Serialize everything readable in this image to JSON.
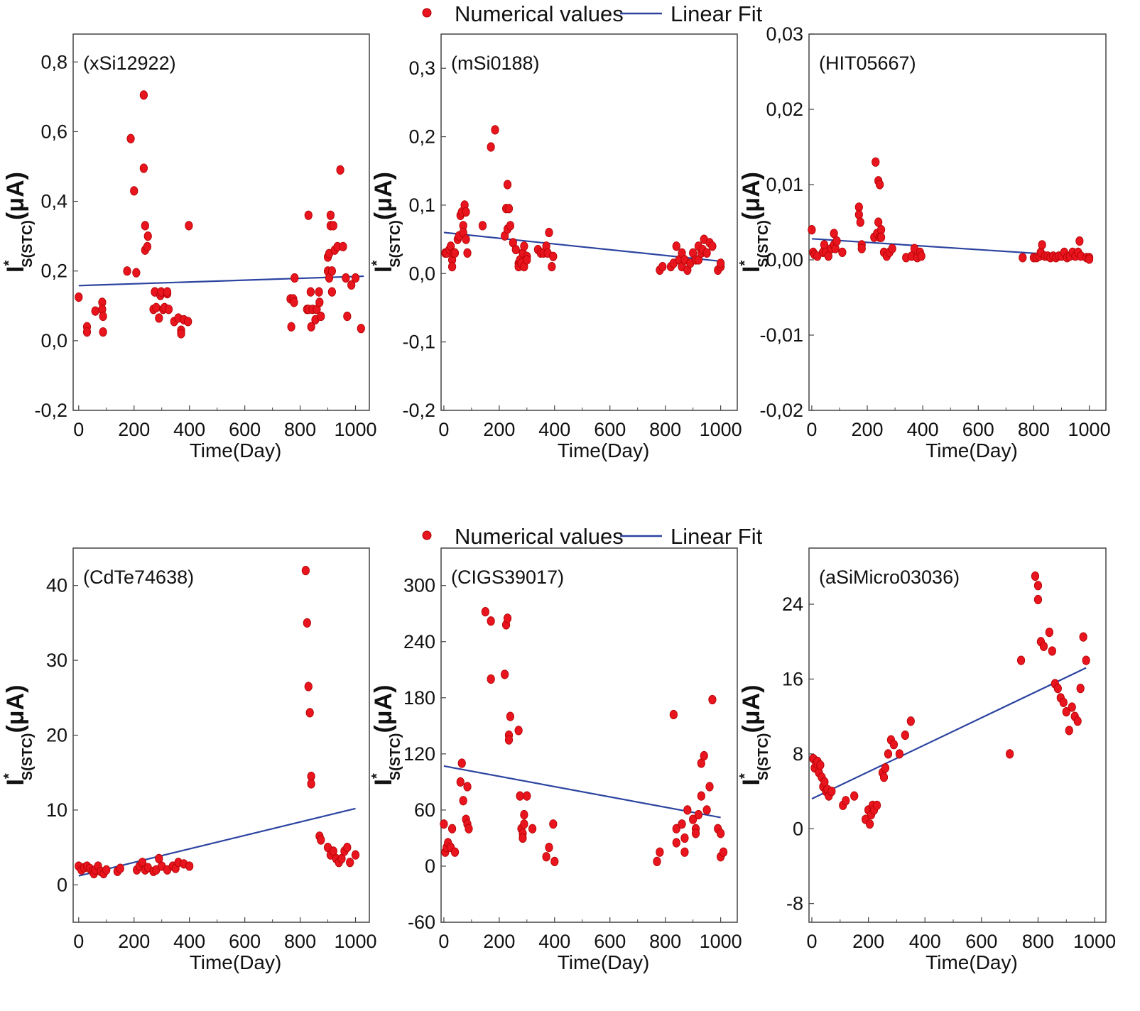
{
  "colors": {
    "point": "#e8141e",
    "point_edge": "#b00000",
    "fit": "#2c44a0",
    "axis": "#444444"
  },
  "legend": {
    "points_label": "Numerical values",
    "fit_label": "Linear Fit"
  },
  "chart_data": [
    {
      "type": "scatter",
      "title": "(xSi12922)",
      "xlabel": "Time(Day)",
      "ylabel_main": "I",
      "ylabel_star": "*",
      "ylabel_sub": "S(STC)",
      "ylabel_unit": "(μA)",
      "xlim": [
        -20,
        1050
      ],
      "ylim": [
        -0.2,
        0.88
      ],
      "xticks": [
        0,
        200,
        400,
        600,
        800,
        1000
      ],
      "xtick_labels": [
        "0",
        "200",
        "400",
        "600",
        "800",
        "1000"
      ],
      "yticks": [
        -0.2,
        0.0,
        0.2,
        0.4,
        0.6,
        0.8
      ],
      "ytick_labels": [
        "-0,2",
        "0,0",
        "0,2",
        "0,4",
        "0,6",
        "0,8"
      ],
      "series": [
        {
          "name": "Numerical values",
          "x": [
            0,
            30,
            30,
            60,
            85,
            85,
            88,
            88,
            175,
            188,
            200,
            208,
            235,
            235,
            240,
            240,
            248,
            250,
            270,
            275,
            275,
            280,
            290,
            295,
            298,
            305,
            310,
            320,
            320,
            325,
            345,
            360,
            370,
            370,
            380,
            395,
            398,
            765,
            768,
            775,
            778,
            780,
            825,
            830,
            830,
            838,
            840,
            845,
            855,
            860,
            868,
            870,
            875,
            900,
            900,
            905,
            905,
            910,
            910,
            915,
            915,
            920,
            925,
            935,
            945,
            955,
            965,
            970,
            985,
            1000,
            1020
          ],
          "y": [
            0.125,
            0.04,
            0.025,
            0.085,
            0.11,
            0.09,
            0.07,
            0.025,
            0.2,
            0.58,
            0.43,
            0.195,
            0.705,
            0.495,
            0.33,
            0.26,
            0.27,
            0.3,
            0.09,
            0.14,
            0.14,
            0.095,
            0.065,
            0.13,
            0.14,
            0.09,
            0.095,
            0.135,
            0.14,
            0.09,
            0.055,
            0.065,
            0.03,
            0.02,
            0.06,
            0.055,
            0.33,
            0.12,
            0.04,
            0.12,
            0.11,
            0.18,
            0.09,
            0.09,
            0.36,
            0.14,
            0.04,
            0.09,
            0.06,
            0.09,
            0.14,
            0.11,
            0.07,
            0.24,
            0.2,
            0.18,
            0.25,
            0.33,
            0.36,
            0.2,
            0.14,
            0.33,
            0.26,
            0.27,
            0.49,
            0.27,
            0.18,
            0.07,
            0.16,
            0.18,
            0.035
          ]
        },
        {
          "name": "Linear Fit",
          "x": [
            0,
            1030
          ],
          "y": [
            0.158,
            0.185
          ]
        }
      ]
    },
    {
      "type": "scatter",
      "title": "(mSi0188)",
      "xlabel": "Time(Day)",
      "ylabel_main": "I",
      "ylabel_star": "*",
      "ylabel_sub": "S(STC)",
      "ylabel_unit": "(μA)",
      "xlim": [
        -10,
        1060
      ],
      "ylim": [
        -0.2,
        0.35
      ],
      "xticks": [
        0,
        200,
        400,
        600,
        800,
        1000
      ],
      "xtick_labels": [
        "0",
        "200",
        "400",
        "600",
        "800",
        "1000"
      ],
      "yticks": [
        -0.2,
        -0.1,
        0.0,
        0.1,
        0.2,
        0.3
      ],
      "ytick_labels": [
        "-0,2",
        "-0,1",
        "0,0",
        "0,1",
        "0,2",
        "0,3"
      ],
      "series": [
        {
          "name": "Numerical values",
          "x": [
            5,
            10,
            20,
            25,
            30,
            30,
            35,
            40,
            50,
            55,
            60,
            65,
            70,
            70,
            75,
            80,
            80,
            85,
            140,
            170,
            185,
            220,
            225,
            230,
            230,
            235,
            240,
            250,
            260,
            270,
            270,
            275,
            280,
            285,
            290,
            290,
            300,
            300,
            340,
            350,
            360,
            370,
            375,
            380,
            390,
            395,
            780,
            790,
            820,
            830,
            840,
            850,
            860,
            860,
            870,
            880,
            890,
            900,
            910,
            920,
            920,
            930,
            935,
            940,
            950,
            960,
            970,
            990,
            1000,
            1000
          ],
          "y": [
            0.03,
            0.03,
            0.035,
            0.04,
            0.02,
            0.01,
            0.03,
            0.03,
            0.05,
            0.055,
            0.085,
            0.09,
            0.07,
            0.06,
            0.1,
            0.09,
            0.05,
            0.03,
            0.07,
            0.185,
            0.21,
            0.055,
            0.095,
            0.13,
            0.065,
            0.095,
            0.07,
            0.045,
            0.035,
            0.015,
            0.01,
            0.02,
            0.015,
            0.03,
            0.04,
            0.01,
            0.025,
            0.02,
            0.035,
            0.03,
            0.03,
            0.04,
            0.03,
            0.06,
            0.01,
            0.025,
            0.005,
            0.01,
            0.01,
            0.015,
            0.04,
            0.02,
            0.01,
            0.03,
            0.02,
            0.005,
            0.015,
            0.03,
            0.02,
            0.02,
            0.04,
            0.03,
            0.035,
            0.05,
            0.03,
            0.045,
            0.04,
            0.005,
            0.01,
            0.015
          ]
        },
        {
          "name": "Linear Fit",
          "x": [
            0,
            1000
          ],
          "y": [
            0.06,
            0.018
          ]
        }
      ]
    },
    {
      "type": "scatter",
      "title": "(HIT05667)",
      "xlabel": "Time(Day)",
      "ylabel_main": "I",
      "ylabel_star": "*",
      "ylabel_sub": "S(STC)",
      "ylabel_unit": "(μA)",
      "xlim": [
        -10,
        1060
      ],
      "ylim": [
        -0.02,
        0.03
      ],
      "xticks": [
        0,
        200,
        400,
        600,
        800,
        1000
      ],
      "xtick_labels": [
        "0",
        "200",
        "400",
        "600",
        "800",
        "1000"
      ],
      "yticks": [
        -0.02,
        -0.01,
        0.0,
        0.01,
        0.02,
        0.03
      ],
      "ytick_labels": [
        "-0,02",
        "-0,01",
        "0,00",
        "0,01",
        "0,02",
        "0,03"
      ],
      "series": [
        {
          "name": "Numerical values",
          "x": [
            0,
            5,
            10,
            20,
            40,
            45,
            50,
            60,
            70,
            80,
            80,
            85,
            90,
            110,
            170,
            170,
            175,
            180,
            180,
            225,
            230,
            235,
            240,
            240,
            245,
            245,
            250,
            250,
            260,
            270,
            280,
            290,
            340,
            360,
            370,
            380,
            390,
            395,
            760,
            800,
            810,
            820,
            825,
            830,
            840,
            850,
            860,
            870,
            880,
            890,
            900,
            910,
            920,
            930,
            940,
            950,
            960,
            965,
            970,
            990,
            1000,
            1000
          ],
          "y": [
            0.004,
            0.001,
            0.0007,
            0.0005,
            0.001,
            0.002,
            0.001,
            0.0005,
            0.0015,
            0.0035,
            0.002,
            0.0015,
            0.0025,
            0.001,
            0.007,
            0.006,
            0.005,
            0.002,
            0.0015,
            0.003,
            0.013,
            0.0035,
            0.0105,
            0.005,
            0.01,
            0.003,
            0.004,
            0.003,
            0.001,
            0.0005,
            0.001,
            0.0015,
            0.0003,
            0.0005,
            0.0015,
            0.0003,
            0.001,
            0.0005,
            0.0003,
            0.0003,
            0.0003,
            0.0005,
            0.001,
            0.002,
            0.0005,
            0.0005,
            0.0003,
            0.0005,
            0.0003,
            0.0005,
            0.0005,
            0.001,
            0.0003,
            0.0005,
            0.001,
            0.0005,
            0.001,
            0.0025,
            0.0005,
            0.0003,
            0.0003,
            0.0001
          ]
        },
        {
          "name": "Linear Fit",
          "x": [
            0,
            1000
          ],
          "y": [
            0.0028,
            0.0004
          ]
        }
      ]
    },
    {
      "type": "scatter",
      "title": "(CdTe74638)",
      "xlabel": "Time(Day)",
      "ylabel_main": "I",
      "ylabel_star": "*",
      "ylabel_sub": "S(STC)",
      "ylabel_unit": "(μA)",
      "xlim": [
        -20,
        1050
      ],
      "ylim": [
        -5,
        45
      ],
      "xticks": [
        0,
        200,
        400,
        600,
        800,
        1000
      ],
      "xtick_labels": [
        "0",
        "200",
        "400",
        "600",
        "800",
        "1000"
      ],
      "yticks": [
        0,
        10,
        20,
        30,
        40
      ],
      "ytick_labels": [
        "0",
        "10",
        "20",
        "30",
        "40"
      ],
      "series": [
        {
          "name": "Numerical values",
          "x": [
            0,
            10,
            20,
            30,
            40,
            50,
            55,
            60,
            70,
            80,
            90,
            100,
            140,
            150,
            210,
            220,
            230,
            240,
            250,
            270,
            280,
            290,
            300,
            320,
            340,
            350,
            360,
            380,
            400,
            820,
            825,
            830,
            835,
            840,
            840,
            870,
            875,
            900,
            910,
            920,
            930,
            940,
            950,
            960,
            970,
            980,
            1000
          ],
          "y": [
            2.5,
            2.0,
            2.3,
            2.5,
            2.2,
            1.8,
            1.5,
            2.0,
            2.5,
            1.8,
            1.5,
            2.0,
            1.8,
            2.2,
            2.0,
            2.5,
            3.0,
            2.0,
            2.3,
            1.8,
            2.0,
            3.5,
            2.5,
            2.0,
            2.5,
            2.2,
            3.0,
            2.8,
            2.5,
            42,
            35,
            26.5,
            23,
            14.5,
            13.5,
            6.5,
            6,
            5,
            4,
            4.5,
            3.5,
            3,
            3.5,
            4.5,
            5,
            3,
            4
          ]
        },
        {
          "name": "Linear Fit",
          "x": [
            0,
            1000
          ],
          "y": [
            1.2,
            10.2
          ]
        }
      ]
    },
    {
      "type": "scatter",
      "title": "(CIGS39017)",
      "xlabel": "Time(Day)",
      "ylabel_main": "I",
      "ylabel_star": "*",
      "ylabel_sub": "S(STC)",
      "ylabel_unit": "(μA)",
      "xlim": [
        -10,
        1060
      ],
      "ylim": [
        -60,
        340
      ],
      "xticks": [
        0,
        200,
        400,
        600,
        800,
        1000
      ],
      "xtick_labels": [
        "0",
        "200",
        "400",
        "600",
        "800",
        "1000"
      ],
      "yticks": [
        -60,
        0,
        60,
        120,
        180,
        240,
        300
      ],
      "ytick_labels": [
        "-60",
        "0",
        "60",
        "120",
        "180",
        "240",
        "300"
      ],
      "series": [
        {
          "name": "Numerical values",
          "x": [
            0,
            5,
            10,
            15,
            25,
            30,
            40,
            60,
            65,
            70,
            80,
            85,
            85,
            90,
            150,
            170,
            170,
            220,
            225,
            230,
            235,
            235,
            240,
            270,
            275,
            280,
            285,
            285,
            290,
            290,
            300,
            320,
            370,
            380,
            395,
            400,
            770,
            780,
            830,
            840,
            840,
            860,
            870,
            870,
            880,
            900,
            910,
            910,
            920,
            930,
            930,
            940,
            950,
            960,
            970,
            990,
            1000,
            1000,
            1010
          ],
          "y": [
            45,
            15,
            20,
            25,
            20,
            40,
            15,
            90,
            110,
            70,
            50,
            85,
            45,
            40,
            272,
            262,
            200,
            205,
            258,
            265,
            140,
            135,
            160,
            145,
            75,
            40,
            35,
            30,
            45,
            55,
            75,
            40,
            10,
            20,
            45,
            5,
            5,
            15,
            162,
            40,
            25,
            45,
            30,
            15,
            60,
            50,
            40,
            35,
            55,
            75,
            110,
            118,
            60,
            85,
            178,
            40,
            35,
            10,
            15
          ]
        },
        {
          "name": "Linear Fit",
          "x": [
            0,
            1000
          ],
          "y": [
            107,
            52
          ]
        }
      ]
    },
    {
      "type": "scatter",
      "title": "(aSiMicro03036)",
      "xlabel": "Time(Day)",
      "ylabel_main": "I",
      "ylabel_star": "*",
      "ylabel_sub": "S(STC)",
      "ylabel_unit": "(μA)",
      "xlim": [
        -10,
        1040
      ],
      "ylim": [
        -10,
        30
      ],
      "xticks": [
        0,
        200,
        400,
        600,
        800,
        1000
      ],
      "xtick_labels": [
        "0",
        "200",
        "400",
        "600",
        "800",
        "1000"
      ],
      "yticks": [
        -8,
        0,
        8,
        16,
        24
      ],
      "ytick_labels": [
        "-8",
        "0",
        "8",
        "16",
        "24"
      ],
      "series": [
        {
          "name": "Numerical values",
          "x": [
            5,
            10,
            15,
            20,
            25,
            30,
            35,
            40,
            45,
            50,
            55,
            60,
            70,
            110,
            120,
            150,
            190,
            200,
            205,
            210,
            215,
            220,
            230,
            250,
            255,
            260,
            270,
            280,
            290,
            310,
            330,
            350,
            700,
            740,
            790,
            800,
            800,
            810,
            820,
            840,
            850,
            860,
            870,
            880,
            890,
            900,
            910,
            920,
            930,
            940,
            950,
            960,
            970
          ],
          "y": [
            7.5,
            6.5,
            7.0,
            7.2,
            6.0,
            6.8,
            5.5,
            4.5,
            5.0,
            4.0,
            4.2,
            3.5,
            4.0,
            2.5,
            3.0,
            3.5,
            1.0,
            2.0,
            0.5,
            1.5,
            2.5,
            2.0,
            2.5,
            6.0,
            5.5,
            6.5,
            8.0,
            9.5,
            9.0,
            8.0,
            10.0,
            11.5,
            8.0,
            18.0,
            27.0,
            26.0,
            24.5,
            20.0,
            19.5,
            21.0,
            19.0,
            15.5,
            15.0,
            14.0,
            13.5,
            12.5,
            10.5,
            13.0,
            12.0,
            11.5,
            15.0,
            20.5,
            18.0
          ]
        },
        {
          "name": "Linear Fit",
          "x": [
            0,
            970
          ],
          "y": [
            3.2,
            17.2
          ]
        }
      ]
    }
  ]
}
